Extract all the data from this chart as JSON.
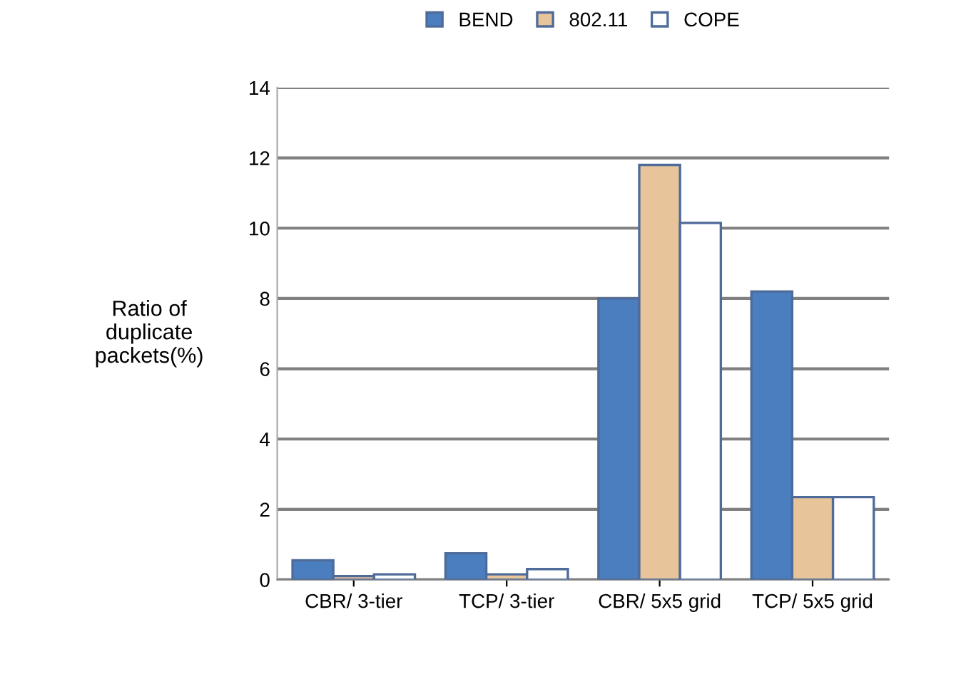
{
  "chart_data": {
    "type": "bar",
    "ylabel": "Ratio of\nduplicate\npackets(%)",
    "categories": [
      "CBR/ 3-tier",
      "TCP/ 3-tier",
      "CBR/ 5x5 grid",
      "TCP/ 5x5 grid"
    ],
    "series": [
      {
        "name": "BEND",
        "color": "#4a7ebf",
        "values": [
          0.55,
          0.75,
          8.0,
          8.2
        ]
      },
      {
        "name": "802.11",
        "color": "#e8c49a",
        "values": [
          0.1,
          0.15,
          11.8,
          2.35
        ]
      },
      {
        "name": "COPE",
        "color": "#ffffff",
        "values": [
          0.15,
          0.3,
          10.15,
          2.35
        ]
      }
    ],
    "ylim": [
      0,
      14
    ],
    "yticks": [
      0,
      2,
      4,
      6,
      8,
      10,
      12,
      14
    ],
    "grid": "y",
    "legend": "top"
  }
}
